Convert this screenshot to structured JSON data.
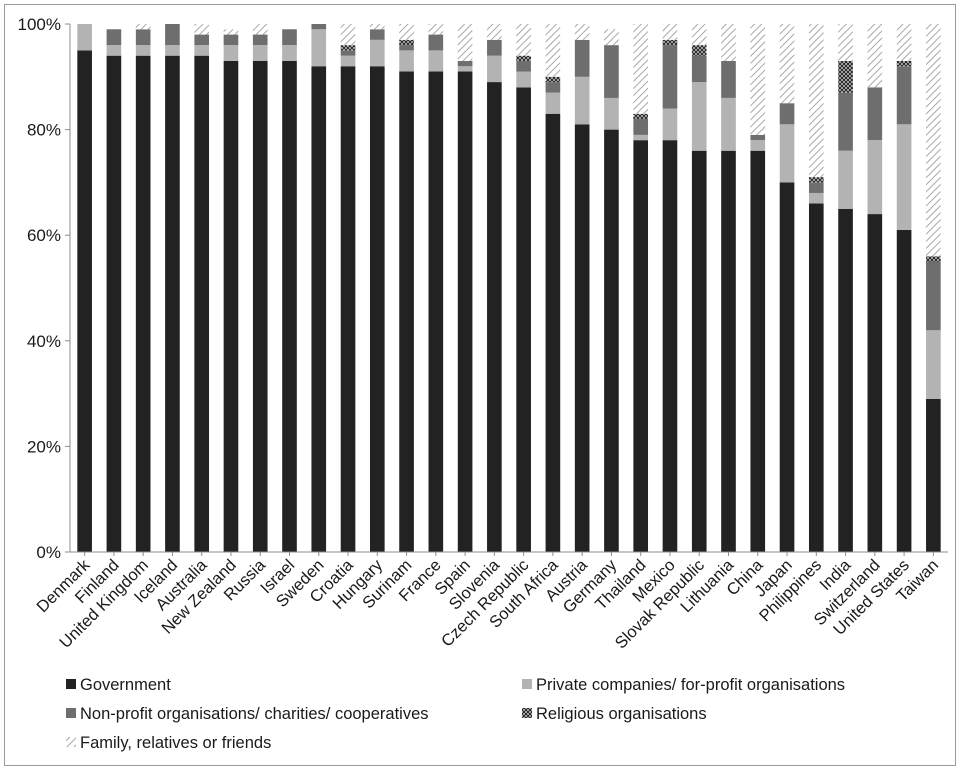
{
  "chart_data": {
    "type": "bar",
    "stacked": true,
    "title": "",
    "xlabel": "",
    "ylabel": "",
    "ylim": [
      0,
      100
    ],
    "y_ticks": [
      "0%",
      "20%",
      "40%",
      "60%",
      "80%",
      "100%"
    ],
    "y_tick_values": [
      0,
      20,
      40,
      60,
      80,
      100
    ],
    "grid": false,
    "legend_position": "bottom",
    "categories": [
      "Denmark",
      "Finland",
      "United Kingdom",
      "Iceland",
      "Australia",
      "New Zealand",
      "Russia",
      "Israel",
      "Sweden",
      "Croatia",
      "Hungary",
      "Surinam",
      "France",
      "Spain",
      "Slovenia",
      "Czech Republic",
      "South Africa",
      "Austria",
      "Germany",
      "Thailand",
      "Mexico",
      "Slovak Republic",
      "Lithuania",
      "China",
      "Japan",
      "Philippines",
      "India",
      "Switzerland",
      "United States",
      "Taiwan"
    ],
    "series": [
      {
        "name": "Government",
        "color": "#222222",
        "pattern": "solid",
        "values": [
          95,
          94,
          94,
          94,
          94,
          93,
          93,
          93,
          92,
          92,
          92,
          91,
          91,
          91,
          89,
          88,
          83,
          81,
          80,
          78,
          78,
          76,
          76,
          76,
          70,
          66,
          65,
          64,
          61,
          29
        ]
      },
      {
        "name": "Private companies/ for-profit organisations",
        "color": "#b3b3b3",
        "pattern": "solid",
        "values": [
          5,
          2,
          2,
          2,
          2,
          3,
          3,
          3,
          7,
          2,
          5,
          4,
          4,
          1,
          5,
          3,
          4,
          9,
          6,
          1,
          6,
          13,
          10,
          2,
          11,
          2,
          11,
          14,
          20,
          13
        ]
      },
      {
        "name": "Non-profit organisations/ charities/ cooperatives",
        "color": "#6e6e6e",
        "pattern": "solid",
        "values": [
          0,
          3,
          3,
          4,
          2,
          2,
          2,
          3,
          1,
          1,
          2,
          1,
          3,
          1,
          3,
          2,
          2,
          7,
          10,
          3,
          12,
          5,
          7,
          1,
          4,
          2,
          11,
          10,
          11,
          13
        ]
      },
      {
        "name": "Religious organisations",
        "color": "#333333",
        "pattern": "crosshatch",
        "values": [
          0,
          0,
          0,
          0,
          0,
          0,
          0,
          0,
          0,
          1,
          0,
          1,
          0,
          0,
          0,
          1,
          1,
          0,
          0,
          1,
          1,
          2,
          0,
          0,
          0,
          1,
          6,
          0,
          1,
          1
        ]
      },
      {
        "name": "Family, relatives or friends",
        "color": "#bdbdbd",
        "pattern": "hatch",
        "values": [
          0,
          0,
          1,
          0,
          2,
          1,
          2,
          0,
          0,
          4,
          1,
          3,
          2,
          7,
          3,
          6,
          10,
          3,
          3,
          17,
          3,
          4,
          7,
          21,
          15,
          29,
          7,
          12,
          7,
          44
        ]
      }
    ]
  }
}
